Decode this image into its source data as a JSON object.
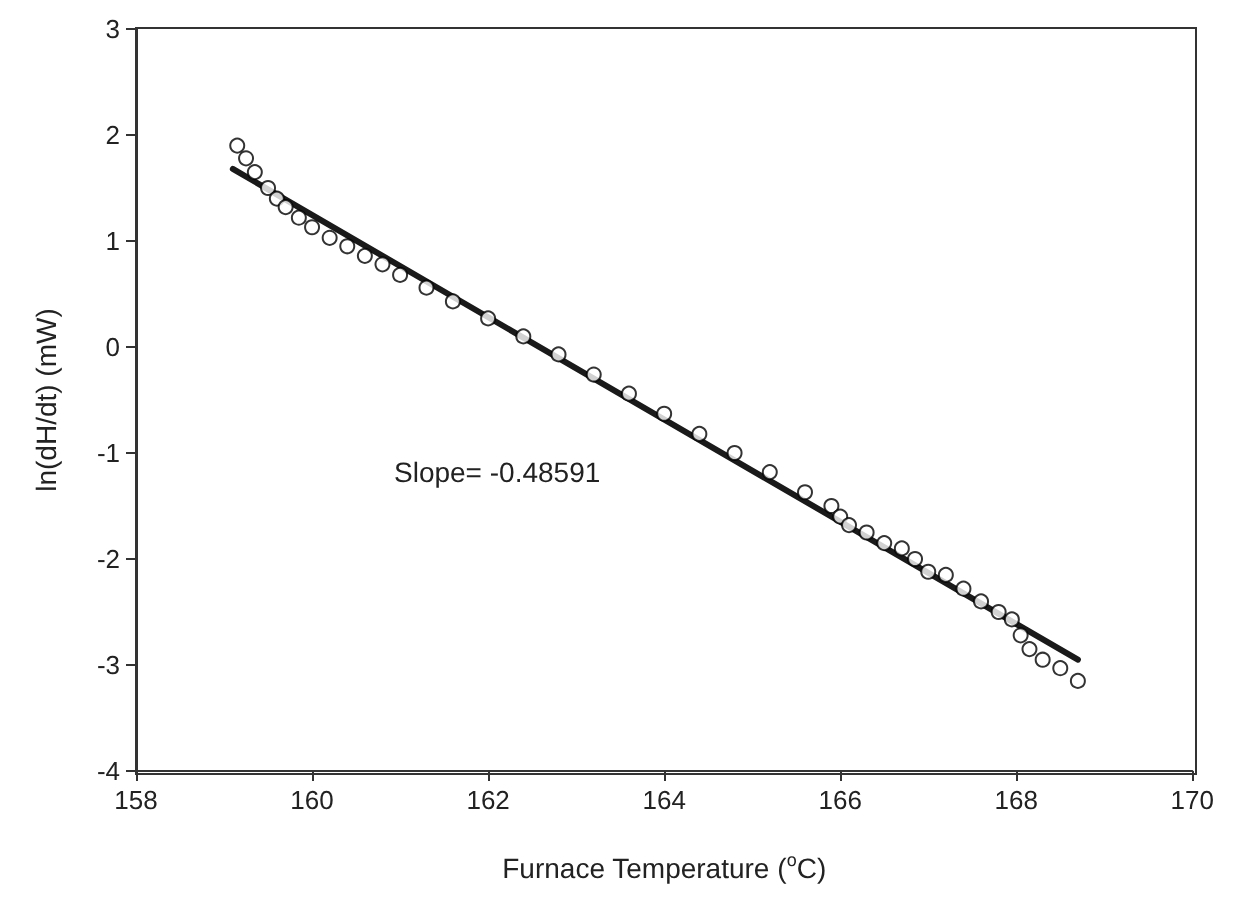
{
  "chart_data": {
    "type": "scatter",
    "xlabel": "Furnace Temperature ($^{o}$C)",
    "ylabel": "ln(dH/dt) (mW)",
    "xlim": [
      158,
      170
    ],
    "xticks": [
      158,
      160,
      162,
      164,
      166,
      168,
      170
    ],
    "ylim": [
      -4,
      3
    ],
    "yticks": [
      -4,
      -3,
      -2,
      -1,
      0,
      1,
      2,
      3
    ],
    "grid": false,
    "marker": "circle",
    "annotations": [
      "Slope= -0.48591"
    ],
    "series": [
      {
        "color": "#000000",
        "x": [
          159.15,
          159.25,
          159.35,
          159.5,
          159.6,
          159.7,
          159.85,
          160,
          160.2,
          160.4,
          160.6,
          160.8,
          161,
          161.3,
          161.6,
          162,
          162.4,
          162.8,
          163.2,
          163.6,
          164,
          164.4,
          164.8,
          165.2,
          165.6,
          165.9,
          166,
          166.1,
          166.3,
          166.5,
          166.7,
          166.85,
          167,
          167.2,
          167.4,
          167.6,
          167.8,
          167.95,
          168.05,
          168.15,
          168.3,
          168.5,
          168.7
        ],
        "values": [
          1.9,
          1.78,
          1.65,
          1.5,
          1.4,
          1.32,
          1.22,
          1.13,
          1.03,
          0.95,
          0.86,
          0.78,
          0.68,
          0.56,
          0.43,
          0.27,
          0.1,
          -0.07,
          -0.26,
          -0.44,
          -0.63,
          -0.82,
          -1.0,
          -1.18,
          -1.37,
          -1.5,
          -1.6,
          -1.68,
          -1.75,
          -1.85,
          -1.9,
          -2.0,
          -2.12,
          -2.15,
          -2.28,
          -2.4,
          -2.5,
          -2.57,
          -2.72,
          -2.85,
          -2.95,
          -3.03,
          -3.15
        ]
      },
      {
        "type": "line",
        "color": "#1a1a1a",
        "marker": "none",
        "line_style": "solid",
        "x": [
          159.1,
          168.7
        ],
        "values": [
          1.68,
          -2.95
        ]
      }
    ]
  }
}
